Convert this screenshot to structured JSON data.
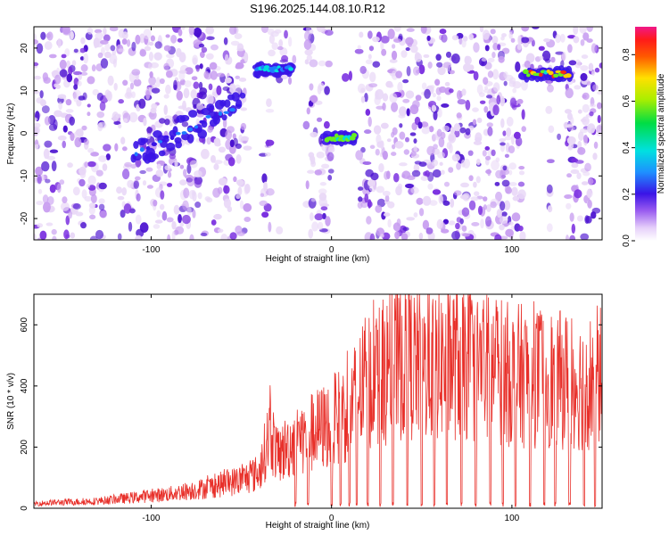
{
  "title": "S196.2025.144.08.10.R12",
  "colors": {
    "noise_light": "#e9d8f7",
    "noise_mid": "#c79cf0",
    "noise_dark": "#7a2fe0",
    "noise_deep": "#4a10d0",
    "snr_line": "#e8302a"
  },
  "chart_data": [
    {
      "type": "heatmap",
      "title": "S196.2025.144.08.10.R12",
      "xlabel": "Height of straight line (km)",
      "ylabel": "Frequency (Hz)",
      "xlim": [
        -165,
        150
      ],
      "ylim": [
        -25,
        25
      ],
      "xticks": [
        -100,
        0,
        100
      ],
      "yticks": [
        -20,
        -10,
        0,
        10,
        20
      ],
      "colorbar": {
        "label": "Normalized spectral amplitude",
        "range": [
          0,
          0.92
        ],
        "ticks": [
          "0.0",
          "0.2",
          "0.4",
          "0.6",
          "0.8"
        ],
        "colormap": "rainbow (white-violet-blue-cyan-green-yellow-red-magenta)"
      },
      "features": [
        {
          "name": "sloped trace",
          "x": [
            -110,
            -50
          ],
          "y": [
            -5,
            7
          ],
          "amplitude": 0.3
        },
        {
          "name": "echo",
          "x": [
            -42,
            -22
          ],
          "y": [
            15,
            15
          ],
          "amplitude": 0.35
        },
        {
          "name": "echo",
          "x": [
            -3,
            13
          ],
          "y": [
            -1,
            -1
          ],
          "amplitude": 0.65
        },
        {
          "name": "echo",
          "x": [
            107,
            132
          ],
          "y": [
            14,
            14
          ],
          "amplitude": 0.8
        }
      ]
    },
    {
      "type": "line",
      "xlabel": "Height of straight line (km)",
      "ylabel": "SNR (10 * v/v)",
      "xlim": [
        -165,
        150
      ],
      "ylim": [
        0,
        700
      ],
      "xticks": [
        -100,
        0,
        100
      ],
      "yticks": [
        0,
        200,
        400,
        600
      ],
      "series": [
        {
          "x": [
            -165,
            -150,
            -130,
            -110,
            -90,
            -70,
            -50,
            -40,
            -34,
            -30,
            -20,
            -10,
            0,
            10,
            20,
            30,
            40,
            50,
            60,
            70,
            80,
            90,
            100,
            110,
            120,
            130,
            140,
            148
          ],
          "values": [
            20,
            25,
            30,
            45,
            60,
            85,
            120,
            150,
            330,
            220,
            290,
            320,
            360,
            420,
            540,
            580,
            620,
            600,
            610,
            620,
            600,
            590,
            560,
            560,
            550,
            540,
            520,
            560
          ]
        }
      ]
    }
  ]
}
